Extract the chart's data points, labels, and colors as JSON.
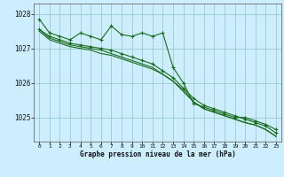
{
  "title": "Graphe pression niveau de la mer (hPa)",
  "background_color": "#cceeff",
  "grid_color": "#99cccc",
  "line_color": "#1a6b1a",
  "x_labels": [
    "0",
    "1",
    "2",
    "3",
    "4",
    "5",
    "6",
    "7",
    "8",
    "9",
    "10",
    "11",
    "12",
    "13",
    "14",
    "15",
    "16",
    "17",
    "18",
    "19",
    "20",
    "21",
    "22",
    "23"
  ],
  "ylim": [
    1024.3,
    1028.3
  ],
  "yticks": [
    1025,
    1026,
    1027,
    1028
  ],
  "series": [
    [
      1027.85,
      1027.45,
      1027.35,
      1027.25,
      1027.45,
      1027.35,
      1027.25,
      1027.65,
      1027.4,
      1027.35,
      1027.45,
      1027.35,
      1027.45,
      1026.45,
      1026.0,
      1025.4,
      1025.3,
      1025.2,
      1025.1,
      1025.0,
      1025.0,
      1024.9,
      1024.8,
      1024.65
    ],
    [
      1027.55,
      1027.35,
      1027.25,
      1027.15,
      1027.1,
      1027.05,
      1027.0,
      1026.95,
      1026.85,
      1026.75,
      1026.65,
      1026.55,
      1026.35,
      1026.15,
      1025.85,
      1025.55,
      1025.35,
      1025.25,
      1025.15,
      1025.05,
      1024.95,
      1024.85,
      1024.75,
      1024.55
    ],
    [
      1027.55,
      1027.3,
      1027.2,
      1027.1,
      1027.05,
      1027.0,
      1026.95,
      1026.85,
      1026.75,
      1026.65,
      1026.55,
      1026.45,
      1026.25,
      1026.05,
      1025.75,
      1025.45,
      1025.25,
      1025.15,
      1025.05,
      1024.95,
      1024.85,
      1024.78,
      1024.65,
      1024.45
    ],
    [
      1027.5,
      1027.25,
      1027.15,
      1027.05,
      1027.0,
      1026.95,
      1026.85,
      1026.8,
      1026.7,
      1026.6,
      1026.5,
      1026.4,
      1026.25,
      1026.05,
      1025.8,
      1025.45,
      1025.25,
      1025.15,
      1025.05,
      1024.95,
      1024.85,
      1024.78,
      1024.65,
      1024.45
    ]
  ],
  "marker_series": [
    0,
    1
  ],
  "marker_size": 3.5,
  "lwidths": [
    0.8,
    0.8,
    0.8,
    0.8
  ],
  "ylabel_left_pad": 0.01,
  "figsize": [
    3.2,
    2.0
  ],
  "dpi": 100
}
